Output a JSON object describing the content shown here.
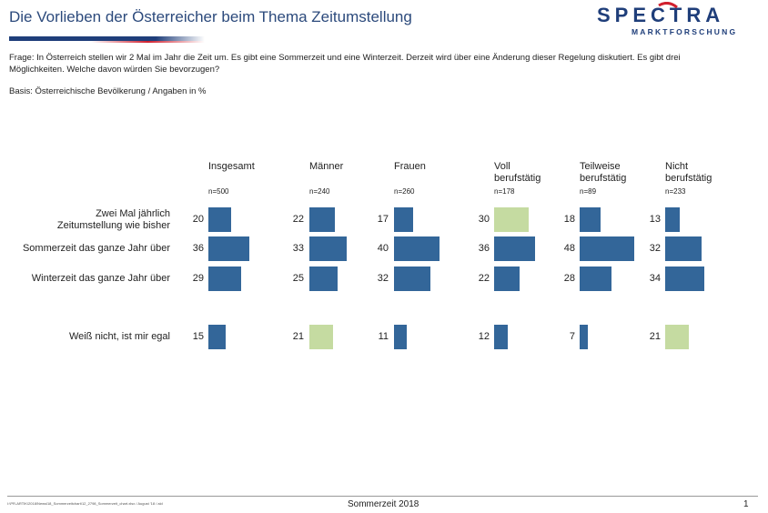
{
  "header": {
    "title": "Die Vorlieben der Österreicher beim Thema Zeitumstellung",
    "logo_main": "SPECTRA",
    "logo_sub": "MARKTFORSCHUNG"
  },
  "question": "Frage: In Österreich stellen wir 2 Mal im Jahr die Zeit um. Es gibt eine Sommerzeit und eine Winterzeit. Derzeit wird über eine Änderung dieser Regelung diskutiert. Es gibt drei Möglichkeiten. Welche davon würden Sie bevorzugen?",
  "basis": "Basis: Österreichische Bevölkerung / Angaben in %",
  "footer": {
    "path": "I:\\PR-ARTIK\\2018\\Newsl18_Sommerzeitchart\\12_2798_Sommerzeit_chart.xlsx / August '18 / ald",
    "title": "Sommerzeit 2018",
    "page": "1"
  },
  "colors": {
    "bar": "#336699",
    "highlight": "#c5dba1",
    "title": "#2c4a7c",
    "logo_blue": "#1f3e7a",
    "logo_red": "#d0202f"
  },
  "chart_data": {
    "type": "bar",
    "orientation": "horizontal",
    "categories": [
      "Zwei Mal jährlich Zeitumstellung wie bisher",
      "Sommerzeit das ganze Jahr über",
      "Winterzeit das ganze Jahr über",
      "Weiß nicht, ist mir egal"
    ],
    "category_lines": [
      [
        "Zwei Mal jährlich",
        "Zeitumstellung wie bisher"
      ],
      [
        "Sommerzeit das ganze Jahr über"
      ],
      [
        "Winterzeit das ganze Jahr über"
      ],
      [
        "Weiß nicht, ist mir egal"
      ]
    ],
    "series": [
      {
        "name": "Insgesamt",
        "lines": [
          "Insgesamt"
        ],
        "n": "n=500",
        "values": [
          20,
          36,
          29,
          15
        ],
        "highlight": [
          false,
          false,
          false,
          false
        ]
      },
      {
        "name": "Männer",
        "lines": [
          "Männer"
        ],
        "n": "n=240",
        "values": [
          22,
          33,
          25,
          21
        ],
        "highlight": [
          false,
          false,
          false,
          true
        ]
      },
      {
        "name": "Frauen",
        "lines": [
          "Frauen"
        ],
        "n": "n=260",
        "values": [
          17,
          40,
          32,
          11
        ],
        "highlight": [
          false,
          false,
          false,
          false
        ]
      },
      {
        "name": "Voll berufstätig",
        "lines": [
          "Voll",
          "berufstätig"
        ],
        "n": "n=178",
        "values": [
          30,
          36,
          22,
          12
        ],
        "highlight": [
          true,
          false,
          false,
          false
        ]
      },
      {
        "name": "Teilweise berufstätig",
        "lines": [
          "Teilweise",
          "berufstätig"
        ],
        "n": "n=89",
        "values": [
          18,
          48,
          28,
          7
        ],
        "highlight": [
          false,
          false,
          false,
          false
        ]
      },
      {
        "name": "Nicht berufstätig",
        "lines": [
          "Nicht",
          "berufstätig"
        ],
        "n": "n=233",
        "values": [
          13,
          32,
          34,
          21
        ],
        "highlight": [
          false,
          false,
          false,
          true
        ]
      }
    ],
    "xlim": [
      0,
      48
    ]
  }
}
